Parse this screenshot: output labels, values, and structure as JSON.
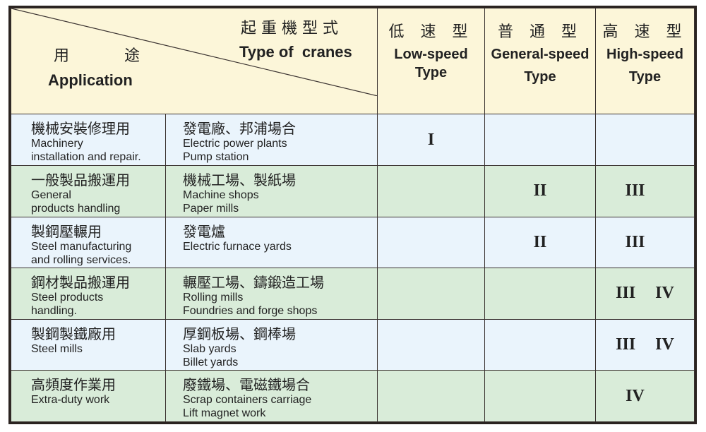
{
  "header": {
    "application_zh": [
      "用",
      "途"
    ],
    "application_en": "Application",
    "crane_type_zh": "起 重 機 型 式",
    "crane_type_en": "Type of  cranes",
    "columns": [
      {
        "zh": "低 速 型",
        "en1": "Low-speed",
        "en2": "Type"
      },
      {
        "zh": "普 通 型",
        "en1": "General-speed",
        "en2": "Type"
      },
      {
        "zh": "高 速 型",
        "en1": "High-speed",
        "en2": "Type"
      }
    ]
  },
  "rows": [
    {
      "app_zh": "機械安裝修理用",
      "app_en": [
        "Machinery",
        "installation and repair."
      ],
      "place_zh": "發電廠、邦浦場合",
      "place_en": [
        "Electric power plants",
        "Pump station"
      ],
      "low": "I",
      "general": "",
      "high": [
        "",
        ""
      ],
      "color": "#eaf4fc"
    },
    {
      "app_zh": "一般製品搬運用",
      "app_en": [
        "General",
        "products handling"
      ],
      "place_zh": "機械工場、製紙場",
      "place_en": [
        "Machine shops",
        "Paper mills"
      ],
      "low": "",
      "general": "II",
      "high": [
        "III",
        ""
      ],
      "color": "#d9ecd9"
    },
    {
      "app_zh": "製鋼壓輾用",
      "app_en": [
        "Steel manufacturing",
        "and rolling services."
      ],
      "place_zh": "發電爐",
      "place_en": [
        "Electric furnace yards",
        ""
      ],
      "low": "",
      "general": "II",
      "high": [
        "III",
        ""
      ],
      "color": "#eaf4fc"
    },
    {
      "app_zh": "鋼材製品搬運用",
      "app_en": [
        "Steel products",
        "handling."
      ],
      "place_zh": "輾壓工場、鑄鍛造工場",
      "place_en": [
        "Rolling mills",
        "Foundries and forge shops"
      ],
      "low": "",
      "general": "",
      "high": [
        "III",
        "IV"
      ],
      "color": "#d9ecd9"
    },
    {
      "app_zh": "製鋼製鐵廠用",
      "app_en": [
        "Steel mills",
        ""
      ],
      "place_zh": "厚鋼板場、鋼棒場",
      "place_en": [
        "Slab yards",
        "Billet yards"
      ],
      "low": "",
      "general": "",
      "high": [
        "III",
        "IV"
      ],
      "color": "#eaf4fc"
    },
    {
      "app_zh": "高頻度作業用",
      "app_en": [
        "Extra-duty work",
        ""
      ],
      "place_zh": "廢鐵場、電磁鐵場合",
      "place_en": [
        "Scrap containers carriage",
        "Lift magnet work"
      ],
      "low": "",
      "general": "",
      "high": [
        "IV",
        ""
      ],
      "color": "#d9ecd9"
    }
  ]
}
